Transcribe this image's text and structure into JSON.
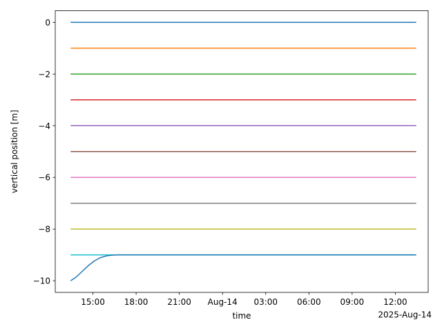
{
  "chart_data": {
    "type": "line",
    "title": "",
    "xlabel": "time",
    "ylabel": "vertical position [m]",
    "x_offset_label": "2025-Aug-14",
    "xlim": [
      "2025-08-13T12:23",
      "2025-08-14T14:17"
    ],
    "ylim": [
      -10.45,
      0.45
    ],
    "x_ticks": [
      {
        "t": "2025-08-13T15:00",
        "label": "15:00"
      },
      {
        "t": "2025-08-13T18:00",
        "label": "18:00"
      },
      {
        "t": "2025-08-13T21:00",
        "label": "21:00"
      },
      {
        "t": "2025-08-14T00:00",
        "label": "Aug-14"
      },
      {
        "t": "2025-08-14T03:00",
        "label": "03:00"
      },
      {
        "t": "2025-08-14T06:00",
        "label": "06:00"
      },
      {
        "t": "2025-08-14T09:00",
        "label": "09:00"
      },
      {
        "t": "2025-08-14T12:00",
        "label": "12:00"
      }
    ],
    "y_ticks": [
      0,
      -2,
      -4,
      -6,
      -8,
      -10
    ],
    "grid": false,
    "series": [
      {
        "color": "#1f77b4",
        "x": [
          "2025-08-13T13:27",
          "2025-08-14T13:27"
        ],
        "y": [
          0,
          0
        ]
      },
      {
        "color": "#ff7f0e",
        "x": [
          "2025-08-13T13:27",
          "2025-08-14T13:27"
        ],
        "y": [
          -1,
          -1
        ]
      },
      {
        "color": "#2ca02c",
        "x": [
          "2025-08-13T13:27",
          "2025-08-14T13:27"
        ],
        "y": [
          -2,
          -2
        ]
      },
      {
        "color": "#d62728",
        "x": [
          "2025-08-13T13:27",
          "2025-08-14T13:27"
        ],
        "y": [
          -3,
          -3
        ]
      },
      {
        "color": "#9467bd",
        "x": [
          "2025-08-13T13:27",
          "2025-08-14T13:27"
        ],
        "y": [
          -4,
          -4
        ]
      },
      {
        "color": "#8c564b",
        "x": [
          "2025-08-13T13:27",
          "2025-08-14T13:27"
        ],
        "y": [
          -5,
          -5
        ]
      },
      {
        "color": "#e377c2",
        "x": [
          "2025-08-13T13:27",
          "2025-08-14T13:27"
        ],
        "y": [
          -6,
          -6
        ]
      },
      {
        "color": "#7f7f7f",
        "x": [
          "2025-08-13T13:27",
          "2025-08-14T13:27"
        ],
        "y": [
          -7,
          -7
        ]
      },
      {
        "color": "#bcbd22",
        "x": [
          "2025-08-13T13:27",
          "2025-08-14T13:27"
        ],
        "y": [
          -8,
          -8
        ]
      },
      {
        "color": "#17becf",
        "x": [
          "2025-08-13T13:27",
          "2025-08-14T13:27"
        ],
        "y": [
          -9,
          -9
        ]
      },
      {
        "color": "#1f77b4",
        "x": [
          "2025-08-13T13:27",
          "2025-08-13T13:50",
          "2025-08-13T14:15",
          "2025-08-13T14:40",
          "2025-08-13T15:05",
          "2025-08-13T15:30",
          "2025-08-13T15:55",
          "2025-08-13T16:20",
          "2025-08-13T16:45",
          "2025-08-14T13:27"
        ],
        "y": [
          -10,
          -9.86,
          -9.64,
          -9.42,
          -9.24,
          -9.11,
          -9.04,
          -9.01,
          -9.0,
          -9.0
        ]
      }
    ]
  }
}
